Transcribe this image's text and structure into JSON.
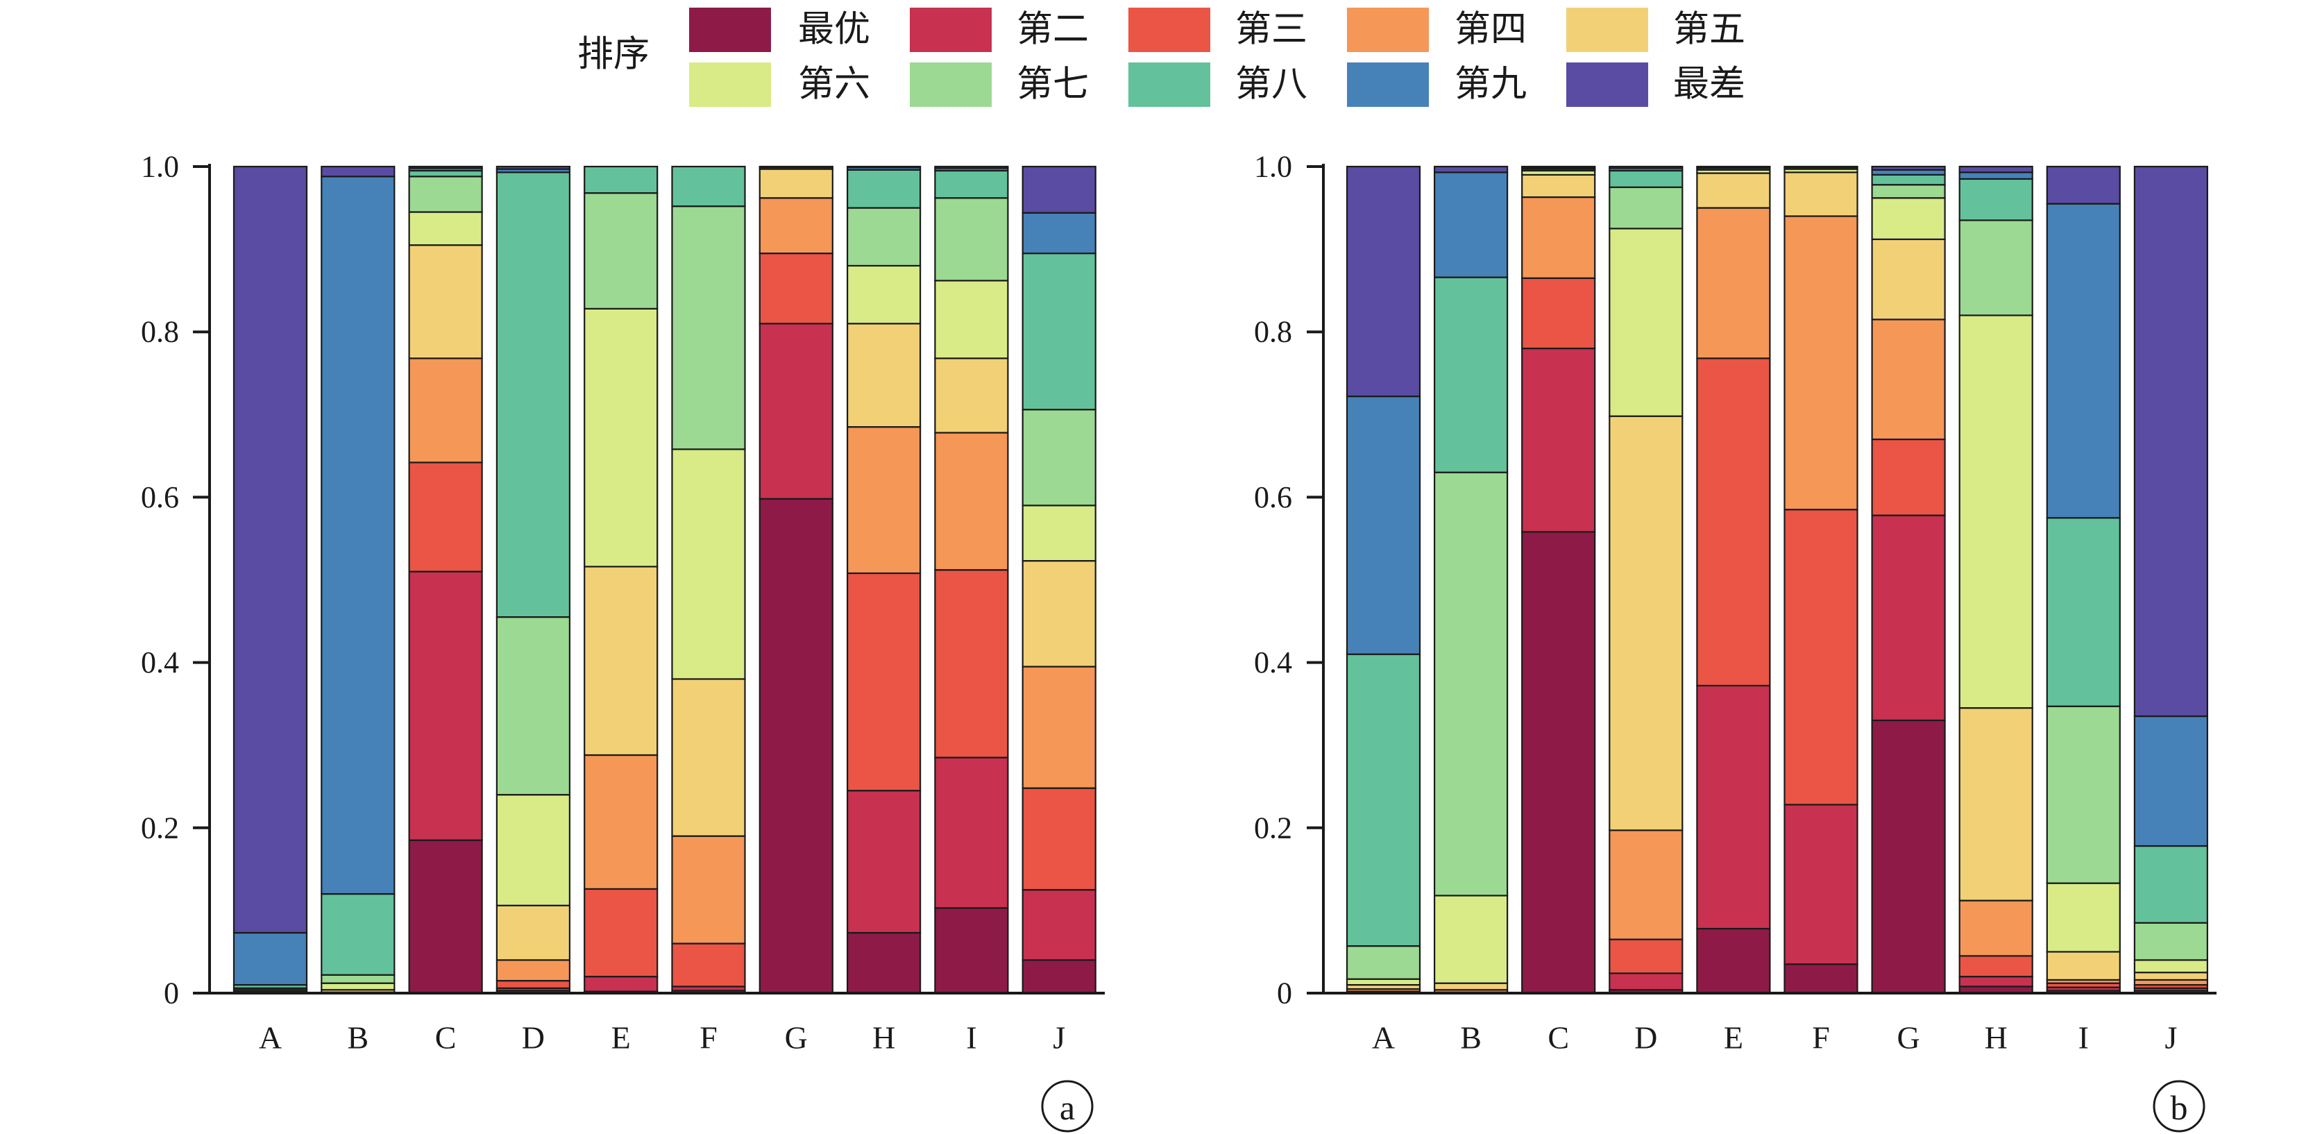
{
  "legend": {
    "title": "排序",
    "position": "top"
  },
  "chart_data": [
    {
      "panel": "a",
      "type": "bar",
      "stacked": true,
      "grid": false,
      "categories": [
        "A",
        "B",
        "C",
        "D",
        "E",
        "F",
        "G",
        "H",
        "I",
        "J"
      ],
      "ylim": [
        0,
        1
      ],
      "yticks": [
        "0",
        "0.2",
        "0.4",
        "0.6",
        "0.8",
        "1.0"
      ],
      "series": [
        {
          "name": "最优",
          "color": "#8e1b47",
          "values": [
            0,
            0,
            0.185,
            0.003,
            0.002,
            0.003,
            0.598,
            0.073,
            0.103,
            0.04
          ]
        },
        {
          "name": "第二",
          "color": "#c83150",
          "values": [
            0,
            0,
            0.325,
            0.003,
            0.018,
            0.005,
            0.212,
            0.172,
            0.182,
            0.085
          ]
        },
        {
          "name": "第三",
          "color": "#ea5546",
          "values": [
            0,
            0,
            0.132,
            0.009,
            0.106,
            0.052,
            0.085,
            0.263,
            0.227,
            0.123
          ]
        },
        {
          "name": "第四",
          "color": "#f59757",
          "values": [
            0.001,
            0.001,
            0.126,
            0.025,
            0.162,
            0.13,
            0.067,
            0.177,
            0.166,
            0.147
          ]
        },
        {
          "name": "第五",
          "color": "#f2d176",
          "values": [
            0.001,
            0.003,
            0.137,
            0.066,
            0.228,
            0.19,
            0.035,
            0.125,
            0.09,
            0.128
          ]
        },
        {
          "name": "第六",
          "color": "#d8eb87",
          "values": [
            0.002,
            0.008,
            0.04,
            0.134,
            0.312,
            0.278,
            0.002,
            0.07,
            0.094,
            0.067
          ]
        },
        {
          "name": "第七",
          "color": "#9cd992",
          "values": [
            0.002,
            0.01,
            0.043,
            0.215,
            0.14,
            0.294,
            0.001,
            0.07,
            0.1,
            0.116
          ]
        },
        {
          "name": "第八",
          "color": "#63c29b",
          "values": [
            0.004,
            0.098,
            0.007,
            0.538,
            0.032,
            0.048,
            0,
            0.046,
            0.033,
            0.189
          ]
        },
        {
          "name": "第九",
          "color": "#4682b8",
          "values": [
            0.063,
            0.868,
            0.003,
            0.004,
            0,
            0,
            0,
            0.003,
            0.003,
            0.049
          ]
        },
        {
          "name": "最差",
          "color": "#5a4ca2",
          "values": [
            0.927,
            0.012,
            0.002,
            0.003,
            0,
            0,
            0,
            0.001,
            0.002,
            0.056
          ]
        }
      ]
    },
    {
      "panel": "b",
      "type": "bar",
      "stacked": true,
      "grid": false,
      "categories": [
        "A",
        "B",
        "C",
        "D",
        "E",
        "F",
        "G",
        "H",
        "I",
        "J"
      ],
      "ylim": [
        0,
        1
      ],
      "yticks": [
        "0",
        "0.2",
        "0.4",
        "0.6",
        "0.8",
        "1.0"
      ],
      "series": [
        {
          "name": "最优",
          "color": "#8e1b47",
          "values": [
            0.002,
            0.001,
            0.558,
            0.004,
            0.078,
            0.035,
            0.33,
            0.008,
            0.003,
            0.003
          ]
        },
        {
          "name": "第二",
          "color": "#c83150",
          "values": [
            0,
            0,
            0.222,
            0.02,
            0.294,
            0.193,
            0.248,
            0.012,
            0.004,
            0.003
          ]
        },
        {
          "name": "第三",
          "color": "#ea5546",
          "values": [
            0,
            0,
            0.085,
            0.041,
            0.396,
            0.357,
            0.092,
            0.025,
            0.005,
            0.004
          ]
        },
        {
          "name": "第四",
          "color": "#f59757",
          "values": [
            0.003,
            0.003,
            0.098,
            0.132,
            0.182,
            0.355,
            0.145,
            0.067,
            0.004,
            0.006
          ]
        },
        {
          "name": "第五",
          "color": "#f2d176",
          "values": [
            0.005,
            0.008,
            0.027,
            0.501,
            0.042,
            0.053,
            0.097,
            0.233,
            0.034,
            0.009
          ]
        },
        {
          "name": "第六",
          "color": "#d8eb87",
          "values": [
            0.007,
            0.106,
            0.005,
            0.227,
            0.004,
            0.004,
            0.05,
            0.475,
            0.083,
            0.015
          ]
        },
        {
          "name": "第七",
          "color": "#9cd992",
          "values": [
            0.04,
            0.512,
            0.002,
            0.05,
            0.002,
            0.002,
            0.016,
            0.115,
            0.214,
            0.045
          ]
        },
        {
          "name": "第八",
          "color": "#63c29b",
          "values": [
            0.353,
            0.236,
            0.001,
            0.02,
            0.001,
            0.001,
            0.012,
            0.05,
            0.228,
            0.093
          ]
        },
        {
          "name": "第九",
          "color": "#4682b8",
          "values": [
            0.312,
            0.127,
            0.001,
            0.003,
            0.001,
            0,
            0.006,
            0.008,
            0.38,
            0.157
          ]
        },
        {
          "name": "最差",
          "color": "#5a4ca2",
          "values": [
            0.278,
            0.007,
            0.001,
            0.002,
            0,
            0,
            0.004,
            0.007,
            0.045,
            0.665
          ]
        }
      ]
    }
  ]
}
